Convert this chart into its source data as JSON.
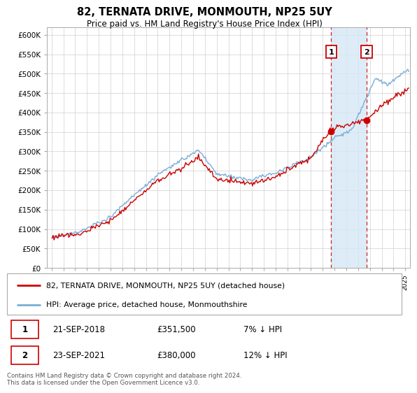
{
  "title": "82, TERNATA DRIVE, MONMOUTH, NP25 5UY",
  "subtitle": "Price paid vs. HM Land Registry's House Price Index (HPI)",
  "legend_line1": "82, TERNATA DRIVE, MONMOUTH, NP25 5UY (detached house)",
  "legend_line2": "HPI: Average price, detached house, Monmouthshire",
  "footnote": "Contains HM Land Registry data © Crown copyright and database right 2024.\nThis data is licensed under the Open Government Licence v3.0.",
  "sale1_date": "21-SEP-2018",
  "sale1_price": "£351,500",
  "sale1_hpi": "7% ↓ HPI",
  "sale2_date": "23-SEP-2021",
  "sale2_price": "£380,000",
  "sale2_hpi": "12% ↓ HPI",
  "sale1_year": 2018.72,
  "sale1_value": 351500,
  "sale2_year": 2021.72,
  "sale2_value": 380000,
  "hpi_color": "#7aaed6",
  "price_color": "#cc0000",
  "ylim": [
    0,
    620000
  ],
  "yticks": [
    0,
    50000,
    100000,
    150000,
    200000,
    250000,
    300000,
    350000,
    400000,
    450000,
    500000,
    550000,
    600000
  ],
  "shade_color": "#d6e8f5",
  "bg_color": "#ffffff"
}
